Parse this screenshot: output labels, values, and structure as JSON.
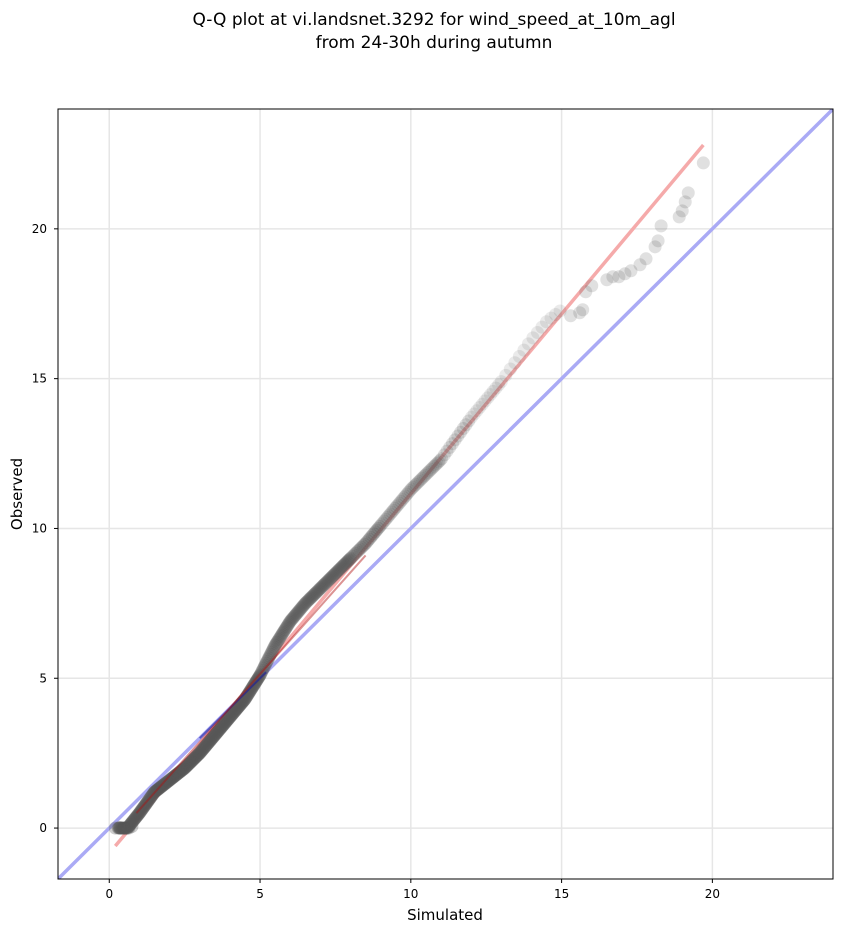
{
  "chart_data": {
    "type": "scatter",
    "title_line1": "Q-Q plot at vi.landsnet.3292 for wind_speed_at_10m_agl",
    "title_line2": "from 24-30h during autumn",
    "xlabel": "Simulated",
    "ylabel": "Observed",
    "xlim": [
      -1.7,
      24.0
    ],
    "ylim": [
      -1.7,
      24.0
    ],
    "xticks": [
      0,
      5,
      10,
      15,
      20
    ],
    "yticks": [
      0,
      5,
      10,
      15,
      20
    ],
    "xtick_labels": [
      "0",
      "5",
      "10",
      "15",
      "20"
    ],
    "ytick_labels": [
      "0",
      "5",
      "10",
      "15",
      "20"
    ],
    "grid": true,
    "colors": {
      "points": "#555555",
      "identity_line": "#aaaaf5",
      "fit_line": "#f5aaaa",
      "fit_line_dense": "#b01010",
      "identity_line_dense": "#1a1a9a"
    },
    "identity_line": {
      "x": [
        -1.7,
        24.0
      ],
      "y": [
        -1.7,
        24.0
      ]
    },
    "fit_line": {
      "x": [
        0.2,
        19.7
      ],
      "y": [
        -0.6,
        22.8
      ]
    },
    "quantiles_knots": {
      "x": [
        0.3,
        0.6,
        1.0,
        1.5,
        2.0,
        2.5,
        3.0,
        3.5,
        4.0,
        4.5,
        5.0,
        5.5,
        6.0,
        6.5,
        7.0,
        7.5,
        8.0,
        8.5,
        9.0,
        9.5,
        10.0,
        10.5,
        11.0,
        11.5,
        12.0,
        12.5,
        13.0,
        13.5,
        14.0,
        14.5,
        15.0
      ],
      "y": [
        0.0,
        0.0,
        0.5,
        1.2,
        1.6,
        2.0,
        2.5,
        3.1,
        3.7,
        4.3,
        5.1,
        6.1,
        6.9,
        7.5,
        8.0,
        8.5,
        9.0,
        9.5,
        10.1,
        10.7,
        11.3,
        11.8,
        12.3,
        13.0,
        13.7,
        14.3,
        14.9,
        15.6,
        16.3,
        16.9,
        17.3
      ]
    },
    "tail_points": {
      "x": [
        15.3,
        15.6,
        15.7,
        15.8,
        16.0,
        16.5,
        16.7,
        16.9,
        17.1,
        17.3,
        17.6,
        17.8,
        18.1,
        18.2,
        18.3,
        18.9,
        19.0,
        19.1,
        19.2,
        19.7
      ],
      "y": [
        17.1,
        17.2,
        17.3,
        17.9,
        18.1,
        18.3,
        18.4,
        18.4,
        18.5,
        18.6,
        18.8,
        19.0,
        19.4,
        19.6,
        20.1,
        20.4,
        20.6,
        20.9,
        21.2,
        22.2
      ]
    }
  }
}
